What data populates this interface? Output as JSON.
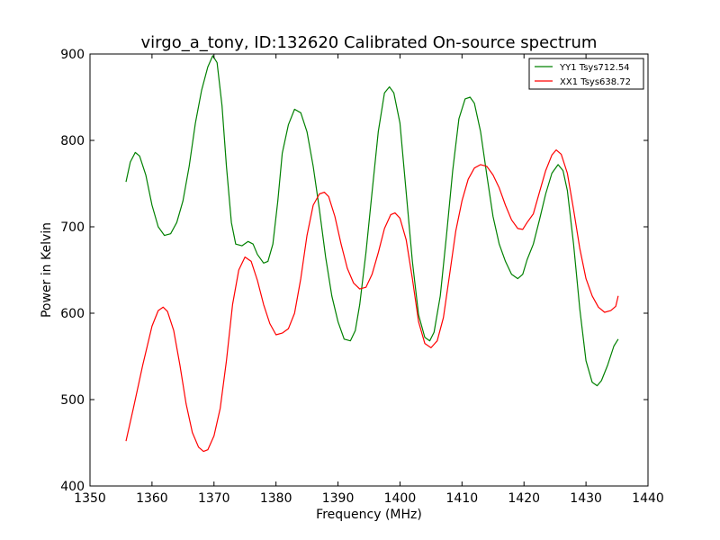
{
  "chart_data": {
    "type": "line",
    "title": "virgo_a_tony, ID:132620 Calibrated On-source spectrum",
    "xlabel": "Frequency (MHz)",
    "ylabel": "Power in Kelvin",
    "xlim": [
      1350,
      1440
    ],
    "ylim": [
      400,
      900
    ],
    "xticks": [
      1350,
      1360,
      1370,
      1380,
      1390,
      1400,
      1410,
      1420,
      1430,
      1440
    ],
    "yticks": [
      400,
      500,
      600,
      700,
      800,
      900
    ],
    "grid": false,
    "legend_position": "top-right",
    "series": [
      {
        "name": "YY1 Tsys712.54",
        "color": "#008000",
        "points": [
          [
            1355.8,
            752
          ],
          [
            1356.5,
            775
          ],
          [
            1357.3,
            786
          ],
          [
            1358.0,
            782
          ],
          [
            1359.0,
            760
          ],
          [
            1360.0,
            725
          ],
          [
            1361.0,
            700
          ],
          [
            1362.0,
            690
          ],
          [
            1363.0,
            692
          ],
          [
            1364.0,
            705
          ],
          [
            1365.0,
            730
          ],
          [
            1366.0,
            770
          ],
          [
            1367.0,
            820
          ],
          [
            1368.0,
            858
          ],
          [
            1369.0,
            885
          ],
          [
            1369.8,
            898
          ],
          [
            1370.5,
            890
          ],
          [
            1371.3,
            840
          ],
          [
            1372.0,
            770
          ],
          [
            1372.8,
            705
          ],
          [
            1373.5,
            680
          ],
          [
            1374.5,
            678
          ],
          [
            1375.5,
            683
          ],
          [
            1376.3,
            680
          ],
          [
            1377.0,
            668
          ],
          [
            1378.0,
            658
          ],
          [
            1378.7,
            660
          ],
          [
            1379.5,
            680
          ],
          [
            1380.3,
            730
          ],
          [
            1381.0,
            785
          ],
          [
            1382.0,
            818
          ],
          [
            1383.0,
            836
          ],
          [
            1384.0,
            832
          ],
          [
            1385.0,
            810
          ],
          [
            1386.0,
            770
          ],
          [
            1387.0,
            720
          ],
          [
            1388.0,
            665
          ],
          [
            1389.0,
            620
          ],
          [
            1390.0,
            590
          ],
          [
            1391.0,
            570
          ],
          [
            1392.0,
            568
          ],
          [
            1392.8,
            580
          ],
          [
            1393.5,
            610
          ],
          [
            1394.5,
            670
          ],
          [
            1395.5,
            740
          ],
          [
            1396.5,
            810
          ],
          [
            1397.5,
            855
          ],
          [
            1398.3,
            862
          ],
          [
            1399.0,
            855
          ],
          [
            1400.0,
            820
          ],
          [
            1401.0,
            740
          ],
          [
            1402.0,
            660
          ],
          [
            1403.0,
            598
          ],
          [
            1404.0,
            572
          ],
          [
            1404.8,
            568
          ],
          [
            1405.5,
            578
          ],
          [
            1406.5,
            620
          ],
          [
            1407.5,
            690
          ],
          [
            1408.5,
            765
          ],
          [
            1409.5,
            825
          ],
          [
            1410.5,
            848
          ],
          [
            1411.3,
            850
          ],
          [
            1412.0,
            843
          ],
          [
            1413.0,
            810
          ],
          [
            1414.0,
            760
          ],
          [
            1415.0,
            712
          ],
          [
            1416.0,
            680
          ],
          [
            1417.0,
            660
          ],
          [
            1418.0,
            645
          ],
          [
            1419.0,
            640
          ],
          [
            1419.8,
            645
          ],
          [
            1420.5,
            662
          ],
          [
            1421.5,
            680
          ],
          [
            1422.5,
            708
          ],
          [
            1423.5,
            738
          ],
          [
            1424.5,
            762
          ],
          [
            1425.5,
            772
          ],
          [
            1426.3,
            765
          ],
          [
            1427.0,
            742
          ],
          [
            1428.0,
            680
          ],
          [
            1429.0,
            605
          ],
          [
            1430.0,
            545
          ],
          [
            1431.0,
            520
          ],
          [
            1431.8,
            516
          ],
          [
            1432.5,
            522
          ],
          [
            1433.5,
            540
          ],
          [
            1434.5,
            562
          ],
          [
            1435.2,
            570
          ]
        ]
      },
      {
        "name": "XX1 Tsys638.72",
        "color": "#ff0000",
        "points": [
          [
            1355.8,
            452
          ],
          [
            1357.0,
            490
          ],
          [
            1358.5,
            540
          ],
          [
            1360.0,
            585
          ],
          [
            1361.0,
            603
          ],
          [
            1361.8,
            607
          ],
          [
            1362.5,
            602
          ],
          [
            1363.5,
            580
          ],
          [
            1364.5,
            540
          ],
          [
            1365.5,
            495
          ],
          [
            1366.5,
            462
          ],
          [
            1367.5,
            445
          ],
          [
            1368.3,
            440
          ],
          [
            1369.0,
            442
          ],
          [
            1370.0,
            458
          ],
          [
            1371.0,
            490
          ],
          [
            1372.0,
            545
          ],
          [
            1373.0,
            610
          ],
          [
            1374.0,
            650
          ],
          [
            1375.0,
            665
          ],
          [
            1376.0,
            660
          ],
          [
            1377.0,
            638
          ],
          [
            1378.0,
            610
          ],
          [
            1379.0,
            588
          ],
          [
            1380.0,
            575
          ],
          [
            1381.0,
            577
          ],
          [
            1382.0,
            582
          ],
          [
            1383.0,
            600
          ],
          [
            1384.0,
            640
          ],
          [
            1385.0,
            690
          ],
          [
            1386.0,
            725
          ],
          [
            1387.0,
            738
          ],
          [
            1387.8,
            740
          ],
          [
            1388.5,
            735
          ],
          [
            1389.5,
            712
          ],
          [
            1390.5,
            680
          ],
          [
            1391.5,
            652
          ],
          [
            1392.5,
            635
          ],
          [
            1393.5,
            628
          ],
          [
            1394.5,
            630
          ],
          [
            1395.5,
            645
          ],
          [
            1396.5,
            670
          ],
          [
            1397.5,
            698
          ],
          [
            1398.5,
            714
          ],
          [
            1399.2,
            716
          ],
          [
            1400.0,
            710
          ],
          [
            1401.0,
            685
          ],
          [
            1402.0,
            640
          ],
          [
            1403.0,
            590
          ],
          [
            1404.0,
            565
          ],
          [
            1405.0,
            560
          ],
          [
            1406.0,
            568
          ],
          [
            1407.0,
            595
          ],
          [
            1408.0,
            645
          ],
          [
            1409.0,
            695
          ],
          [
            1410.0,
            730
          ],
          [
            1411.0,
            755
          ],
          [
            1412.0,
            768
          ],
          [
            1413.0,
            772
          ],
          [
            1414.0,
            770
          ],
          [
            1415.0,
            760
          ],
          [
            1416.0,
            745
          ],
          [
            1417.0,
            725
          ],
          [
            1418.0,
            708
          ],
          [
            1419.0,
            698
          ],
          [
            1419.8,
            697
          ],
          [
            1420.5,
            705
          ],
          [
            1421.5,
            715
          ],
          [
            1422.5,
            740
          ],
          [
            1423.5,
            765
          ],
          [
            1424.5,
            783
          ],
          [
            1425.2,
            789
          ],
          [
            1426.0,
            784
          ],
          [
            1427.0,
            762
          ],
          [
            1428.0,
            720
          ],
          [
            1429.0,
            675
          ],
          [
            1430.0,
            640
          ],
          [
            1431.0,
            620
          ],
          [
            1432.0,
            607
          ],
          [
            1433.0,
            601
          ],
          [
            1434.0,
            603
          ],
          [
            1434.8,
            608
          ],
          [
            1435.2,
            620
          ]
        ]
      }
    ]
  }
}
